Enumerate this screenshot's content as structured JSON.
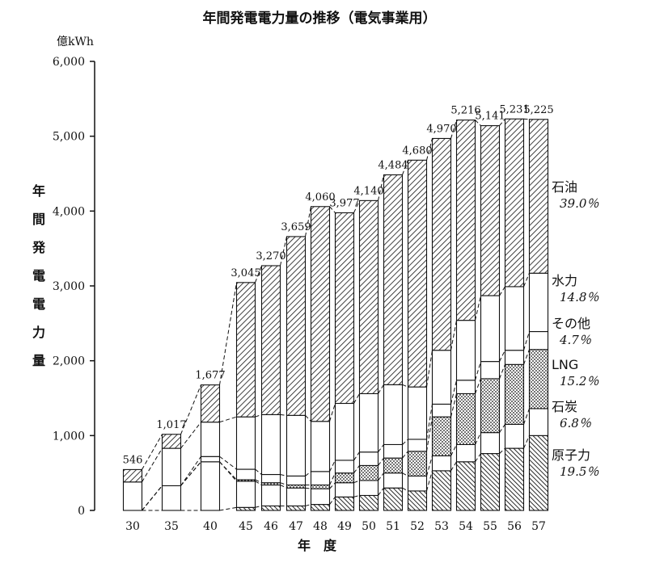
{
  "chart_data": {
    "type": "bar",
    "stacked": true,
    "title": "年間発電電力量の推移（電気事業用）",
    "unit_label": "億kWh",
    "ylabel": "年間発電電力量",
    "xlabel": "年　度",
    "ylim": [
      0,
      6000
    ],
    "yticks": [
      "0",
      "1,000",
      "2,000",
      "3,000",
      "4,000",
      "5,000",
      "6,000"
    ],
    "categories": [
      "30",
      "35",
      "40",
      "45",
      "46",
      "47",
      "48",
      "49",
      "50",
      "51",
      "52",
      "53",
      "54",
      "55",
      "56",
      "57"
    ],
    "totals": [
      546,
      1017,
      1677,
      3045,
      3270,
      3659,
      4060,
      3977,
      4140,
      4484,
      4680,
      4970,
      5216,
      5141,
      5231,
      5225
    ],
    "total_labels": [
      "546",
      "1,017",
      "1,677",
      "3,045",
      "3,270",
      "3,659",
      "4,060",
      "3,977",
      "4,140",
      "4,484",
      "4,680",
      "4,970",
      "5,216",
      "5,141",
      "5,231",
      "5,225"
    ],
    "series": [
      {
        "name": "原子力",
        "share": "19.5％",
        "pattern": "diag-dense",
        "values": [
          0,
          0,
          0,
          40,
          60,
          60,
          80,
          180,
          200,
          300,
          260,
          530,
          650,
          760,
          830,
          1000
        ]
      },
      {
        "name": "石炭",
        "share": "6.8％",
        "pattern": "blank",
        "values": [
          0,
          330,
          650,
          350,
          280,
          240,
          210,
          190,
          200,
          200,
          200,
          200,
          230,
          280,
          320,
          360
        ]
      },
      {
        "name": "LNG",
        "share": "15.2％",
        "pattern": "dots",
        "values": [
          0,
          0,
          0,
          20,
          30,
          40,
          50,
          130,
          200,
          200,
          330,
          520,
          680,
          720,
          800,
          790
        ]
      },
      {
        "name": "その他",
        "share": "4.7％",
        "pattern": "blank",
        "values": [
          0,
          0,
          70,
          140,
          110,
          120,
          180,
          170,
          180,
          180,
          160,
          170,
          180,
          230,
          190,
          240
        ]
      },
      {
        "name": "水力",
        "share": "14.8％",
        "pattern": "blank",
        "values": [
          380,
          500,
          460,
          700,
          800,
          810,
          670,
          760,
          780,
          800,
          700,
          720,
          800,
          880,
          850,
          780
        ]
      },
      {
        "name": "石油",
        "share": "39.0％",
        "pattern": "diag",
        "values": [
          166,
          187,
          497,
          1795,
          1990,
          2389,
          2870,
          2547,
          2580,
          2804,
          3030,
          2830,
          2676,
          2271,
          2241,
          2055
        ]
      }
    ],
    "legend_placement": "right"
  }
}
